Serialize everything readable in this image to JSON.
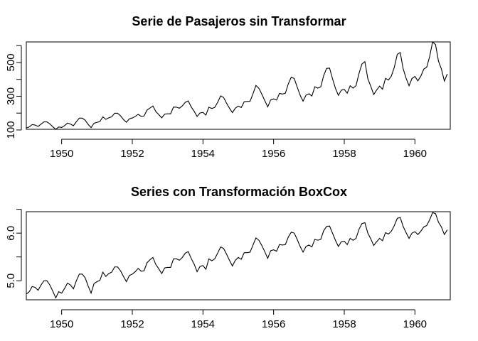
{
  "chart_data": [
    {
      "type": "line",
      "title": "Serie de Pasajeros sin Transformar",
      "xlabel": "",
      "ylabel": "",
      "x_start": 1949,
      "frequency": 12,
      "xlim": [
        1949,
        1961
      ],
      "ylim": [
        104,
        622
      ],
      "x_ticks": [
        1950,
        1952,
        1954,
        1956,
        1958,
        1960
      ],
      "y_ticks": [
        100,
        200,
        300,
        400,
        500,
        600
      ],
      "y_tick_labels": [
        "100",
        "",
        "300",
        "",
        "500",
        ""
      ],
      "grid": false,
      "series": [
        {
          "values": [
            112,
            118,
            132,
            129,
            121,
            135,
            148,
            148,
            136,
            119,
            104,
            118,
            115,
            126,
            141,
            135,
            125,
            149,
            170,
            170,
            158,
            133,
            114,
            140,
            145,
            150,
            178,
            163,
            172,
            178,
            199,
            199,
            184,
            162,
            146,
            166,
            171,
            180,
            193,
            181,
            183,
            218,
            230,
            242,
            209,
            191,
            172,
            194,
            196,
            196,
            236,
            235,
            229,
            243,
            264,
            272,
            237,
            211,
            180,
            201,
            204,
            188,
            235,
            227,
            234,
            264,
            302,
            293,
            259,
            229,
            203,
            229,
            242,
            233,
            267,
            269,
            270,
            315,
            364,
            347,
            312,
            274,
            237,
            278,
            284,
            277,
            317,
            313,
            318,
            374,
            413,
            405,
            355,
            306,
            271,
            306,
            315,
            301,
            356,
            348,
            355,
            422,
            465,
            467,
            404,
            347,
            305,
            336,
            340,
            318,
            362,
            348,
            363,
            435,
            491,
            505,
            404,
            359,
            310,
            337,
            360,
            342,
            406,
            396,
            420,
            472,
            548,
            559,
            463,
            407,
            362,
            405,
            417,
            391,
            419,
            461,
            472,
            535,
            622,
            606,
            508,
            461,
            390,
            432
          ]
        }
      ]
    },
    {
      "type": "line",
      "title": "Series con Transformación BoxCox",
      "xlabel": "",
      "ylabel": "",
      "x_start": 1949,
      "frequency": 12,
      "xlim": [
        1949,
        1961
      ],
      "ylim": [
        4.6,
        6.45
      ],
      "x_ticks": [
        1950,
        1952,
        1954,
        1956,
        1958,
        1960
      ],
      "y_ticks": [
        5.0,
        5.5,
        6.0,
        6.5
      ],
      "y_tick_labels": [
        "5.0",
        "",
        "6.0",
        ""
      ],
      "grid": false,
      "series": [
        {
          "values": [
            4.72,
            4.77,
            4.88,
            4.86,
            4.8,
            4.91,
            5.0,
            5.0,
            4.91,
            4.78,
            4.64,
            4.77,
            4.74,
            4.84,
            4.95,
            4.91,
            4.83,
            5.0,
            5.14,
            5.14,
            5.06,
            4.89,
            4.74,
            4.94,
            4.98,
            5.01,
            5.18,
            5.09,
            5.15,
            5.18,
            5.29,
            5.29,
            5.21,
            5.09,
            4.98,
            5.11,
            5.14,
            5.19,
            5.26,
            5.2,
            5.21,
            5.38,
            5.44,
            5.49,
            5.34,
            5.25,
            5.15,
            5.27,
            5.28,
            5.28,
            5.46,
            5.46,
            5.43,
            5.49,
            5.58,
            5.61,
            5.47,
            5.35,
            5.19,
            5.3,
            5.32,
            5.24,
            5.46,
            5.42,
            5.46,
            5.58,
            5.71,
            5.68,
            5.56,
            5.43,
            5.31,
            5.43,
            5.49,
            5.45,
            5.59,
            5.59,
            5.6,
            5.75,
            5.9,
            5.85,
            5.74,
            5.61,
            5.47,
            5.63,
            5.65,
            5.62,
            5.76,
            5.75,
            5.76,
            5.92,
            6.02,
            6.0,
            5.87,
            5.72,
            5.6,
            5.72,
            5.75,
            5.71,
            5.87,
            5.85,
            5.87,
            6.05,
            6.14,
            6.15,
            6.0,
            5.85,
            5.72,
            5.82,
            5.83,
            5.76,
            5.89,
            5.85,
            5.89,
            6.08,
            6.2,
            6.22,
            6.0,
            5.88,
            5.74,
            5.82,
            5.89,
            5.84,
            6.01,
            5.98,
            6.04,
            6.16,
            6.31,
            6.33,
            6.14,
            6.01,
            5.89,
            6.0,
            6.03,
            5.97,
            6.04,
            6.13,
            6.16,
            6.28,
            6.43,
            6.41,
            6.23,
            6.13,
            5.97,
            6.07
          ]
        }
      ]
    }
  ]
}
